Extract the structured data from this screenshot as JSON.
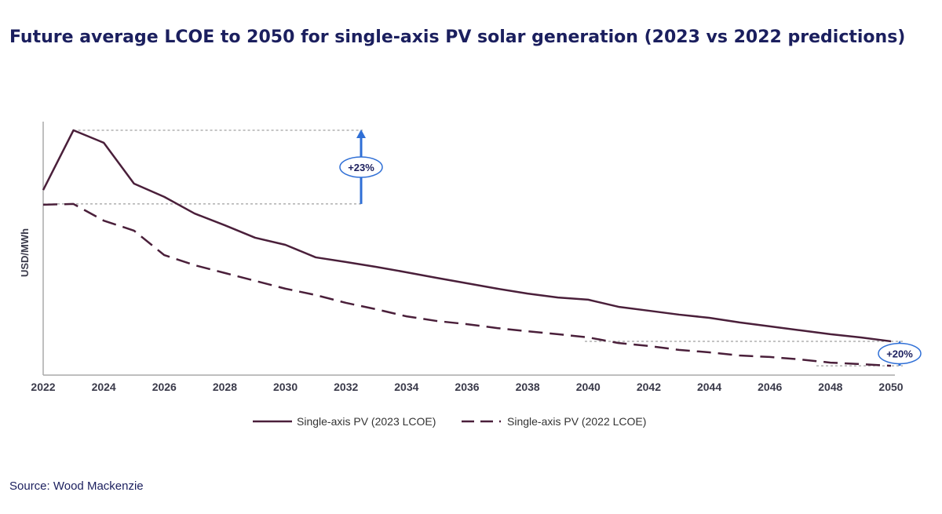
{
  "chart_data": {
    "type": "line",
    "title": "Future average LCOE to 2050 for single-axis PV solar generation (2023 vs 2022 predictions)",
    "xlabel": "",
    "ylabel": "USD/MWh",
    "x": [
      2022,
      2023,
      2024,
      2025,
      2026,
      2027,
      2028,
      2029,
      2030,
      2031,
      2032,
      2033,
      2034,
      2035,
      2036,
      2037,
      2038,
      2039,
      2040,
      2041,
      2042,
      2043,
      2044,
      2045,
      2046,
      2047,
      2048,
      2049,
      2050
    ],
    "x_tick_labels": [
      "2022",
      "2024",
      "2026",
      "2028",
      "2030",
      "2032",
      "2034",
      "2036",
      "2038",
      "2040",
      "2042",
      "2044",
      "2046",
      "2048",
      "2050"
    ],
    "y_note": "no y tick labels shown; values are relative estimates (peak = 100)",
    "ylim": [
      0,
      100
    ],
    "grid": false,
    "legend_position": "bottom",
    "series": [
      {
        "name": "Single-axis PV (2023 LCOE)",
        "style": "solid",
        "color": "#4a1f3a",
        "values": [
          75.6,
          100,
          94.9,
          78.2,
          72.8,
          66.0,
          61.2,
          56.1,
          53.2,
          48.1,
          46.2,
          44.2,
          42.0,
          39.7,
          37.5,
          35.3,
          33.3,
          31.7,
          30.8,
          27.9,
          26.3,
          24.7,
          23.4,
          21.5,
          19.9,
          18.3,
          16.7,
          15.4,
          13.8
        ]
      },
      {
        "name": "Single-axis PV (2022 LCOE)",
        "style": "dashed",
        "color": "#4a1f3a",
        "values": [
          69.6,
          69.9,
          63.1,
          59.0,
          49.0,
          44.9,
          41.7,
          38.5,
          35.3,
          32.7,
          29.5,
          26.9,
          24.0,
          22.1,
          20.8,
          19.2,
          17.9,
          16.7,
          15.4,
          13.1,
          11.9,
          10.3,
          9.3,
          8.0,
          7.4,
          6.4,
          5.1,
          4.5,
          3.8
        ]
      }
    ],
    "annotations": [
      {
        "label": "+23%",
        "year": 2023
      },
      {
        "label": "+20%",
        "year": 2050
      }
    ],
    "accent_color": "#2f6fd6"
  },
  "source": "Source: Wood Mackenzie"
}
